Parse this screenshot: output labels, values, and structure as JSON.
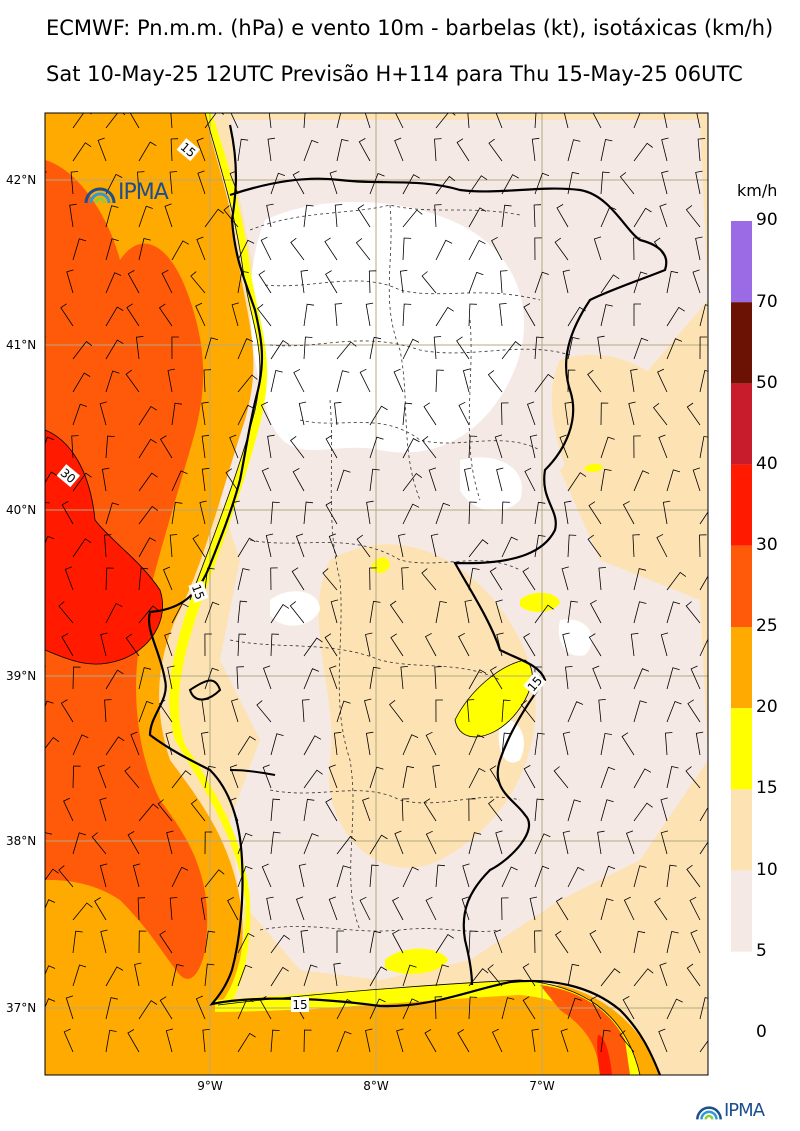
{
  "title_line1": "ECMWF: Pn.m.m. (hPa) e vento 10m - barbelas (kt), isotáxicas (km/h)",
  "title_line2": "Sat 10-May-25 12UTC Previsão H+114 para Thu 15-May-25 06UTC",
  "logo_text": "IPMA",
  "footer_logo_text": "IPMA",
  "latitude_labels": [
    "42°N",
    "41°N",
    "40°N",
    "39°N",
    "38°N",
    "37°N"
  ],
  "longitude_labels": [
    "9°W",
    "8°W",
    "7°W"
  ],
  "contour_labels": [
    "15",
    "30",
    "15",
    "15",
    "15"
  ],
  "colorbar": {
    "unit": "km/h",
    "levels": [
      "90",
      "70",
      "50",
      "40",
      "30",
      "25",
      "20",
      "15",
      "10",
      "5",
      "0"
    ],
    "colors": [
      "#9b6be6",
      "#6b1205",
      "#c81c2c",
      "#ff1a00",
      "#ff5a0a",
      "#ffaa00",
      "#ffff00",
      "#fde2b4",
      "#f5e9e6",
      "#ffffff"
    ]
  },
  "map_colors": {
    "land_outline": "#000000",
    "grid": "#b4aa82",
    "calm": "#ffffff",
    "light": "#f5e9e6",
    "moderate": "#fde2b4",
    "fresh": "#ffff00",
    "strong": "#ffaa00",
    "very_strong": "#ff5a0a",
    "gale": "#ff1a00"
  }
}
